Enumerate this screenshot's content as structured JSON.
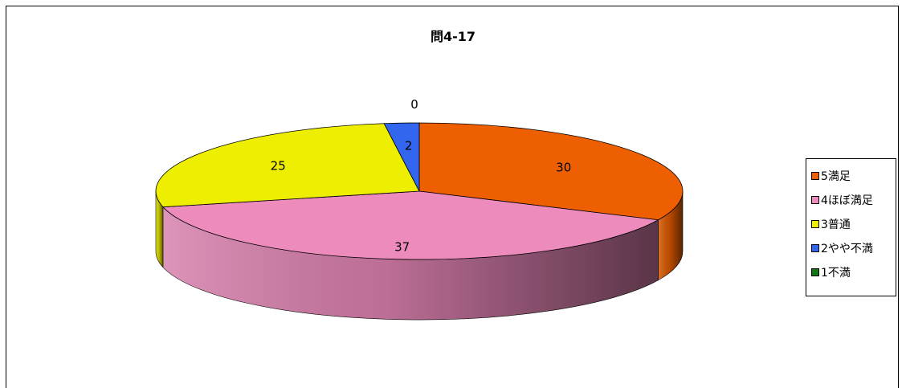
{
  "chart_data": {
    "type": "pie",
    "title": "問4-17",
    "categories": [
      "5満足",
      "4ほぼ満足",
      "3普通",
      "2やや不満",
      "1不満"
    ],
    "values": [
      30,
      37,
      25,
      2,
      0
    ],
    "colors": [
      "#ED5F00",
      "#EE8BBD",
      "#EEEE00",
      "#3366EE",
      "#117711"
    ],
    "legend_position": "right",
    "style": "3d"
  }
}
